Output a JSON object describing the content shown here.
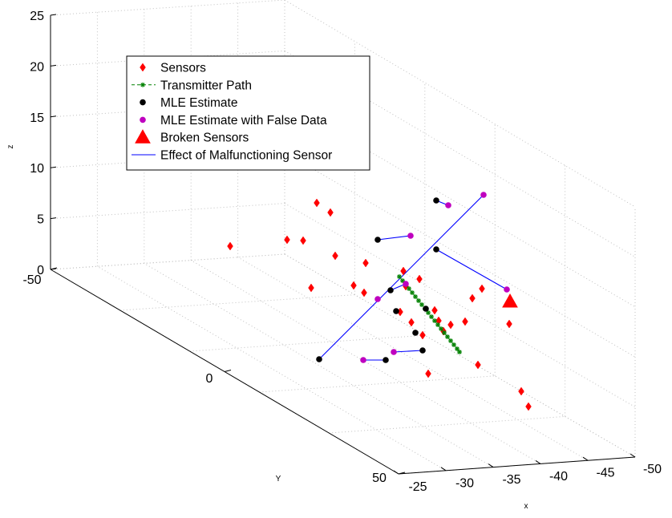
{
  "chart_data": {
    "type": "scatter",
    "projection": "3d",
    "grid": true,
    "legend_position": "top-left",
    "axes": {
      "x": {
        "label": "x",
        "ticks": [
          "-25",
          "-30",
          "-35",
          "-40",
          "-45",
          "-50"
        ]
      },
      "y": {
        "label": "Y",
        "ticks": [
          "-50",
          "0",
          "50"
        ]
      },
      "z": {
        "label": "z",
        "ticks": [
          "0",
          "5",
          "10",
          "15",
          "20",
          "25"
        ]
      }
    },
    "legend": [
      {
        "label": "Sensors",
        "marker": "diamond",
        "color": "#ff0000"
      },
      {
        "label": "Transmitter Path",
        "marker": "dashed-star",
        "color": "#008000"
      },
      {
        "label": "MLE Estimate",
        "marker": "circle",
        "color": "#000000"
      },
      {
        "label": "MLE Estimate with False Data",
        "marker": "circle",
        "color": "#bf00bf"
      },
      {
        "label": "Broken Sensors",
        "marker": "triangle",
        "color": "#ff0000"
      },
      {
        "label": "Effect of Malfunctioning Sensor",
        "marker": "line",
        "color": "#0000ff"
      }
    ],
    "series": [
      {
        "name": "Sensors",
        "points": [
          [
            287,
            307
          ],
          [
            358,
            299
          ],
          [
            378,
            300
          ],
          [
            395,
            253
          ],
          [
            412,
            265
          ],
          [
            418,
            319
          ],
          [
            456,
            328
          ],
          [
            388,
            359
          ],
          [
            441,
            356
          ],
          [
            454,
            365
          ],
          [
            503,
            338
          ],
          [
            523,
            348
          ],
          [
            506,
            357
          ],
          [
            513,
            402
          ],
          [
            499,
            389
          ],
          [
            542,
            387
          ],
          [
            547,
            400
          ],
          [
            562,
            405
          ],
          [
            527,
            418
          ],
          [
            553,
            413
          ],
          [
            580,
            401
          ],
          [
            589,
            372
          ],
          [
            601,
            360
          ],
          [
            635,
            404
          ],
          [
            596,
            455
          ],
          [
            534,
            466
          ],
          [
            650,
            488
          ],
          [
            659,
            507
          ]
        ]
      },
      {
        "name": "Transmitter Path",
        "points": [
          [
            498,
            345
          ],
          [
            502,
            350
          ],
          [
            506,
            355
          ],
          [
            510,
            360
          ],
          [
            514,
            365
          ],
          [
            518,
            370
          ],
          [
            522,
            375
          ],
          [
            526,
            380
          ],
          [
            530,
            385
          ],
          [
            534,
            390
          ],
          [
            538,
            395
          ],
          [
            542,
            400
          ],
          [
            546,
            405
          ],
          [
            550,
            410
          ],
          [
            554,
            415
          ],
          [
            558,
            420
          ],
          [
            562,
            425
          ],
          [
            566,
            430
          ],
          [
            570,
            435
          ],
          [
            573,
            439
          ]
        ]
      },
      {
        "name": "MLE Estimate",
        "points": [
          [
            544,
            250
          ],
          [
            471,
            299
          ],
          [
            544,
            311
          ],
          [
            487,
            362
          ],
          [
            531,
            385
          ],
          [
            494,
            388
          ],
          [
            518,
            415
          ],
          [
            527,
            437
          ],
          [
            481,
            449
          ],
          [
            398,
            448
          ]
        ]
      },
      {
        "name": "MLE Estimate with False Data",
        "points": [
          [
            559,
            256
          ],
          [
            512,
            294
          ],
          [
            632,
            361
          ],
          [
            506,
            354
          ],
          [
            471,
            373
          ],
          [
            491,
            439
          ],
          [
            453,
            449
          ],
          [
            603,
            243
          ]
        ]
      },
      {
        "name": "Broken Sensors",
        "points": [
          [
            636,
            376
          ]
        ]
      },
      {
        "name": "Effect of Malfunctioning Sensor",
        "segments": [
          [
            [
              398,
              448
            ],
            [
              603,
              243
            ]
          ],
          [
            [
              544,
              311
            ],
            [
              632,
              361
            ]
          ],
          [
            [
              471,
              299
            ],
            [
              512,
              294
            ]
          ],
          [
            [
              544,
              250
            ],
            [
              559,
              256
            ]
          ],
          [
            [
              487,
              362
            ],
            [
              506,
              354
            ]
          ],
          [
            [
              491,
              439
            ],
            [
              527,
              437
            ]
          ],
          [
            [
              453,
              449
            ],
            [
              481,
              449
            ]
          ]
        ]
      }
    ]
  }
}
